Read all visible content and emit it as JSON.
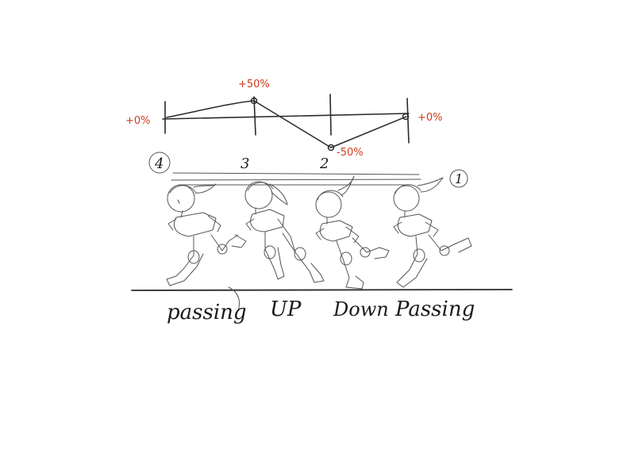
{
  "spacing_chart": {
    "left_label": "+0%",
    "top_label": "+50%",
    "bottom_label": "-50%",
    "right_label": "+0%"
  },
  "frame_numbers": [
    "4",
    "3",
    "2",
    "1"
  ],
  "poses": [
    {
      "label": "passing"
    },
    {
      "label": "UP"
    },
    {
      "label": "Down"
    },
    {
      "label": "Passing"
    }
  ],
  "colors": {
    "ink": "#2a2a2a",
    "annotation": "#d23a1e",
    "paper": "#ffffff"
  }
}
